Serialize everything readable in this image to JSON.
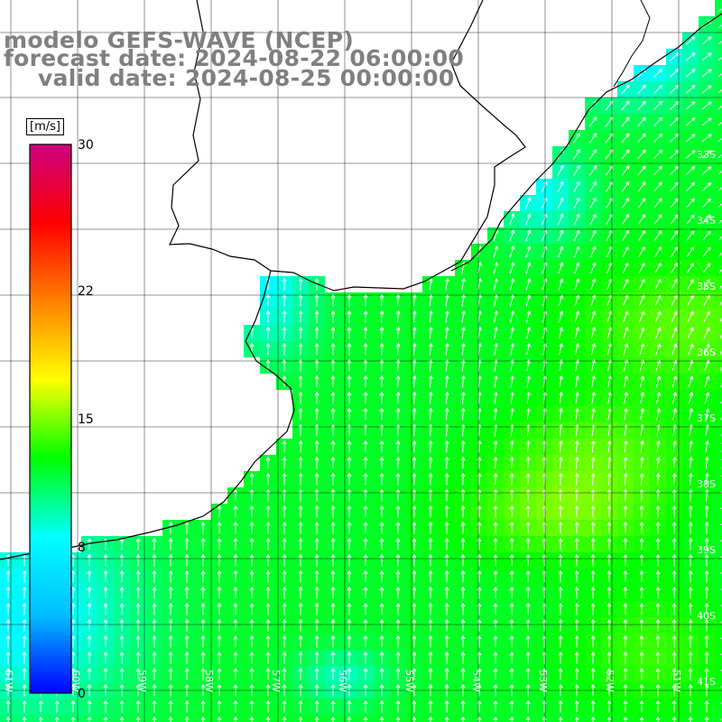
{
  "titles": {
    "model": "modelo GEFS-WAVE (NCEP)",
    "forecast": "forecast date: 2024-08-22 06:00:00",
    "valid": "valid date: 2024-08-25 00:00:00"
  },
  "colorbar": {
    "units": "[m/s]",
    "ticks": [
      "30",
      "22",
      "15",
      "8",
      "0"
    ],
    "tick_values": [
      30,
      22,
      15,
      8,
      0
    ],
    "range": [
      0,
      30
    ],
    "color_stops": [
      "#0000ff",
      "#00bfff",
      "#00ffff",
      "#00ff00",
      "#ffff00",
      "#ff8000",
      "#ff0000",
      "#cc0080"
    ]
  },
  "lat_labels": [
    "33S",
    "34S",
    "35S",
    "36S",
    "37S",
    "38S",
    "39S",
    "40S",
    "41S"
  ],
  "lon_labels": [
    "61W",
    "60W",
    "59W",
    "58W",
    "57W",
    "56W",
    "55W",
    "54W",
    "53W",
    "52W",
    "51W"
  ],
  "map": {
    "region": "Río de la Plata / Uruguay / Buenos Aires coast, South Atlantic",
    "land_color": "#ffffff",
    "grid_color": "#000000",
    "arrow_color": "#ffffff"
  }
}
